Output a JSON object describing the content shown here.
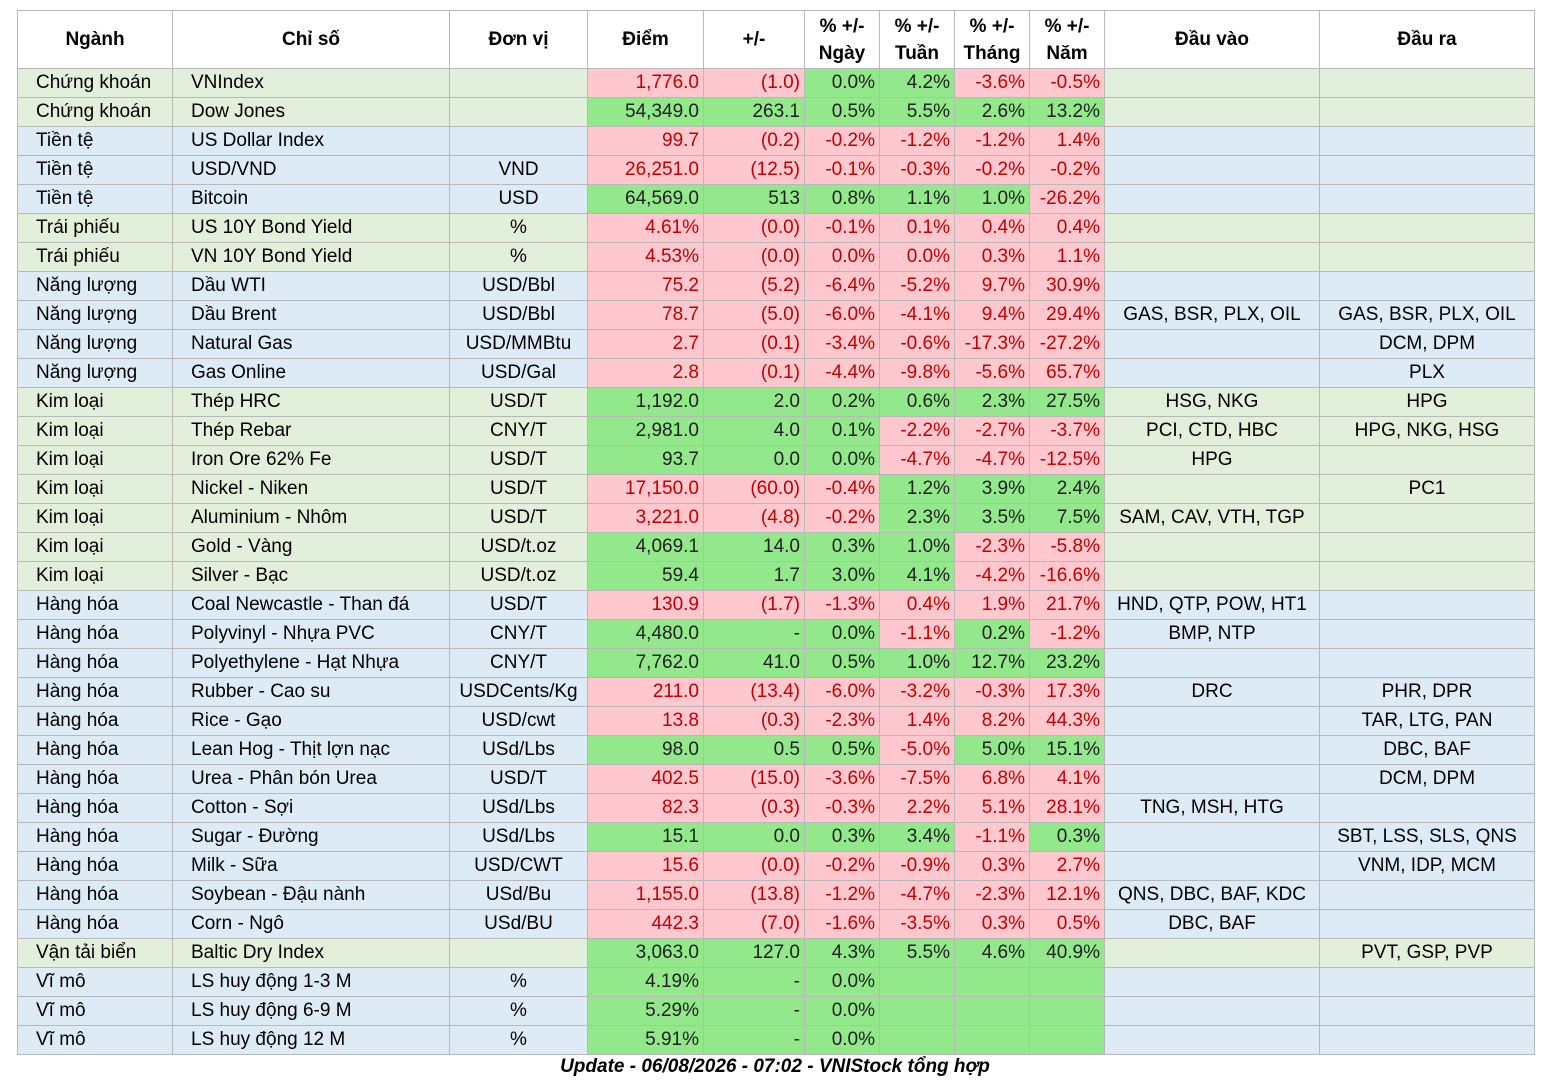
{
  "header": {
    "sector": "Ngành",
    "index": "Chỉ số",
    "unit": "Đơn vị",
    "point": "Điểm",
    "change": "+/-",
    "pct_day": "% +/- Ngày",
    "pct_week": "% +/- Tuần",
    "pct_month": "% +/- Tháng",
    "pct_year": "% +/- Năm",
    "inputs": "Đầu vào",
    "outputs": "Đầu ra"
  },
  "colors": {
    "green_fill": "#92e88a",
    "red_fill": "#ffc7ce",
    "red_text": "#c00000",
    "row_green": "#e2efda",
    "row_blue": "#ddebf7"
  },
  "rows": [
    {
      "sector": "Chứng khoán",
      "index": "VNIndex",
      "unit": "",
      "point": "1,776.0",
      "change": "(1.0)",
      "day": "0.0%",
      "week": "4.2%",
      "month": "-3.6%",
      "year": "-0.5%",
      "in": "",
      "out": "",
      "bg": "#e2efda",
      "c": [
        "r",
        "r",
        "g",
        "g",
        "r",
        "r"
      ]
    },
    {
      "sector": "Chứng khoán",
      "index": "Dow Jones",
      "unit": "",
      "point": "54,349.0",
      "change": "263.1",
      "day": "0.5%",
      "week": "5.5%",
      "month": "2.6%",
      "year": "13.2%",
      "in": "",
      "out": "",
      "bg": "#e2efda",
      "c": [
        "g",
        "g",
        "g",
        "g",
        "g",
        "g"
      ]
    },
    {
      "sector": "Tiền tệ",
      "index": "US Dollar Index",
      "unit": "",
      "point": "99.7",
      "change": "(0.2)",
      "day": "-0.2%",
      "week": "-1.2%",
      "month": "-1.2%",
      "year": "1.4%",
      "in": "",
      "out": "",
      "bg": "#ddebf7",
      "c": [
        "r",
        "r",
        "r",
        "r",
        "r",
        "r"
      ]
    },
    {
      "sector": "Tiền tệ",
      "index": "USD/VND",
      "unit": "VND",
      "point": "26,251.0",
      "change": "(12.5)",
      "day": "-0.1%",
      "week": "-0.3%",
      "month": "-0.2%",
      "year": "-0.2%",
      "in": "",
      "out": "",
      "bg": "#ddebf7",
      "c": [
        "r",
        "r",
        "r",
        "r",
        "r",
        "r"
      ]
    },
    {
      "sector": "Tiền tệ",
      "index": "Bitcoin",
      "unit": "USD",
      "point": "64,569.0",
      "change": "513",
      "day": "0.8%",
      "week": "1.1%",
      "month": "1.0%",
      "year": "-26.2%",
      "in": "",
      "out": "",
      "bg": "#ddebf7",
      "c": [
        "g",
        "g",
        "g",
        "g",
        "g",
        "r"
      ]
    },
    {
      "sector": "Trái phiếu",
      "index": "US 10Y Bond Yield",
      "unit": "%",
      "point": "4.61%",
      "change": "(0.0)",
      "day": "-0.1%",
      "week": "0.1%",
      "month": "0.4%",
      "year": "0.4%",
      "in": "",
      "out": "",
      "bg": "#e2efda",
      "c": [
        "r",
        "r",
        "r",
        "r",
        "r",
        "r"
      ]
    },
    {
      "sector": "Trái phiếu",
      "index": "VN 10Y Bond Yield",
      "unit": "%",
      "point": "4.53%",
      "change": "(0.0)",
      "day": "0.0%",
      "week": "0.0%",
      "month": "0.3%",
      "year": "1.1%",
      "in": "",
      "out": "",
      "bg": "#e2efda",
      "c": [
        "r",
        "r",
        "r",
        "r",
        "r",
        "r"
      ]
    },
    {
      "sector": "Năng lượng",
      "index": "Dầu WTI",
      "unit": "USD/Bbl",
      "point": "75.2",
      "change": "(5.2)",
      "day": "-6.4%",
      "week": "-5.2%",
      "month": "9.7%",
      "year": "30.9%",
      "in": "",
      "out": "",
      "bg": "#ddebf7",
      "c": [
        "r",
        "r",
        "r",
        "r",
        "r",
        "r"
      ]
    },
    {
      "sector": "Năng lượng",
      "index": "Dầu Brent",
      "unit": "USD/Bbl",
      "point": "78.7",
      "change": "(5.0)",
      "day": "-6.0%",
      "week": "-4.1%",
      "month": "9.4%",
      "year": "29.4%",
      "in": "GAS, BSR, PLX, OIL",
      "out": "GAS, BSR, PLX, OIL",
      "bg": "#ddebf7",
      "c": [
        "r",
        "r",
        "r",
        "r",
        "r",
        "r"
      ]
    },
    {
      "sector": "Năng lượng",
      "index": "Natural Gas",
      "unit": "USD/MMBtu",
      "point": "2.7",
      "change": "(0.1)",
      "day": "-3.4%",
      "week": "-0.6%",
      "month": "-17.3%",
      "year": "-27.2%",
      "in": "",
      "out": "DCM, DPM",
      "bg": "#ddebf7",
      "c": [
        "r",
        "r",
        "r",
        "r",
        "r",
        "r"
      ]
    },
    {
      "sector": "Năng lượng",
      "index": "Gas Online",
      "unit": "USD/Gal",
      "point": "2.8",
      "change": "(0.1)",
      "day": "-4.4%",
      "week": "-9.8%",
      "month": "-5.6%",
      "year": "65.7%",
      "in": "",
      "out": "PLX",
      "bg": "#ddebf7",
      "c": [
        "r",
        "r",
        "r",
        "r",
        "r",
        "r"
      ]
    },
    {
      "sector": "Kim loại",
      "index": "Thép HRC",
      "unit": "USD/T",
      "point": "1,192.0",
      "change": "2.0",
      "day": "0.2%",
      "week": "0.6%",
      "month": "2.3%",
      "year": "27.5%",
      "in": "HSG, NKG",
      "out": "HPG",
      "bg": "#e2efda",
      "c": [
        "g",
        "g",
        "g",
        "g",
        "g",
        "g"
      ]
    },
    {
      "sector": "Kim loại",
      "index": "Thép Rebar",
      "unit": "CNY/T",
      "point": "2,981.0",
      "change": "4.0",
      "day": "0.1%",
      "week": "-2.2%",
      "month": "-2.7%",
      "year": "-3.7%",
      "in": "PCI, CTD, HBC",
      "out": "HPG, NKG, HSG",
      "bg": "#e2efda",
      "c": [
        "g",
        "g",
        "g",
        "r",
        "r",
        "r"
      ]
    },
    {
      "sector": "Kim loại",
      "index": "Iron Ore 62% Fe",
      "unit": "USD/T",
      "point": "93.7",
      "change": "0.0",
      "day": "0.0%",
      "week": "-4.7%",
      "month": "-4.7%",
      "year": "-12.5%",
      "in": "HPG",
      "out": "",
      "bg": "#e2efda",
      "c": [
        "g",
        "g",
        "g",
        "r",
        "r",
        "r"
      ]
    },
    {
      "sector": "Kim loại",
      "index": "Nickel - Niken",
      "unit": "USD/T",
      "point": "17,150.0",
      "change": "(60.0)",
      "day": "-0.4%",
      "week": "1.2%",
      "month": "3.9%",
      "year": "2.4%",
      "in": "",
      "out": "PC1",
      "bg": "#e2efda",
      "c": [
        "r",
        "r",
        "r",
        "g",
        "g",
        "g"
      ]
    },
    {
      "sector": "Kim loại",
      "index": "Aluminium - Nhôm",
      "unit": "USD/T",
      "point": "3,221.0",
      "change": "(4.8)",
      "day": "-0.2%",
      "week": "2.3%",
      "month": "3.5%",
      "year": "7.5%",
      "in": "SAM, CAV, VTH, TGP",
      "out": "",
      "bg": "#e2efda",
      "c": [
        "r",
        "r",
        "r",
        "g",
        "g",
        "g"
      ]
    },
    {
      "sector": "Kim loại",
      "index": "Gold - Vàng",
      "unit": "USD/t.oz",
      "point": "4,069.1",
      "change": "14.0",
      "day": "0.3%",
      "week": "1.0%",
      "month": "-2.3%",
      "year": "-5.8%",
      "in": "",
      "out": "",
      "bg": "#e2efda",
      "c": [
        "g",
        "g",
        "g",
        "g",
        "r",
        "r"
      ]
    },
    {
      "sector": "Kim loại",
      "index": "Silver - Bạc",
      "unit": "USD/t.oz",
      "point": "59.4",
      "change": "1.7",
      "day": "3.0%",
      "week": "4.1%",
      "month": "-4.2%",
      "year": "-16.6%",
      "in": "",
      "out": "",
      "bg": "#e2efda",
      "c": [
        "g",
        "g",
        "g",
        "g",
        "r",
        "r"
      ]
    },
    {
      "sector": "Hàng hóa",
      "index": "Coal Newcastle - Than đá",
      "unit": "USD/T",
      "point": "130.9",
      "change": "(1.7)",
      "day": "-1.3%",
      "week": "0.4%",
      "month": "1.9%",
      "year": "21.7%",
      "in": "HND, QTP, POW, HT1",
      "out": "",
      "bg": "#ddebf7",
      "c": [
        "r",
        "r",
        "r",
        "r",
        "r",
        "r"
      ]
    },
    {
      "sector": "Hàng hóa",
      "index": "Polyvinyl - Nhựa PVC",
      "unit": "CNY/T",
      "point": "4,480.0",
      "change": "-",
      "day": "0.0%",
      "week": "-1.1%",
      "month": "0.2%",
      "year": "-1.2%",
      "in": "BMP, NTP",
      "out": "",
      "bg": "#ddebf7",
      "c": [
        "g",
        "g",
        "g",
        "r",
        "g",
        "r"
      ]
    },
    {
      "sector": "Hàng hóa",
      "index": "Polyethylene - Hạt Nhựa",
      "unit": "CNY/T",
      "point": "7,762.0",
      "change": "41.0",
      "day": "0.5%",
      "week": "1.0%",
      "month": "12.7%",
      "year": "23.2%",
      "in": "",
      "out": "",
      "bg": "#ddebf7",
      "c": [
        "g",
        "g",
        "g",
        "g",
        "g",
        "g"
      ]
    },
    {
      "sector": "Hàng hóa",
      "index": "Rubber - Cao su",
      "unit": "USDCents/Kg",
      "point": "211.0",
      "change": "(13.4)",
      "day": "-6.0%",
      "week": "-3.2%",
      "month": "-0.3%",
      "year": "17.3%",
      "in": "DRC",
      "out": "PHR, DPR",
      "bg": "#ddebf7",
      "c": [
        "r",
        "r",
        "r",
        "r",
        "r",
        "r"
      ]
    },
    {
      "sector": "Hàng hóa",
      "index": "Rice - Gạo",
      "unit": "USD/cwt",
      "point": "13.8",
      "change": "(0.3)",
      "day": "-2.3%",
      "week": "1.4%",
      "month": "8.2%",
      "year": "44.3%",
      "in": "",
      "out": "TAR, LTG, PAN",
      "bg": "#ddebf7",
      "c": [
        "r",
        "r",
        "r",
        "r",
        "r",
        "r"
      ]
    },
    {
      "sector": "Hàng hóa",
      "index": "Lean Hog - Thịt lợn nạc",
      "unit": "USd/Lbs",
      "point": "98.0",
      "change": "0.5",
      "day": "0.5%",
      "week": "-5.0%",
      "month": "5.0%",
      "year": "15.1%",
      "in": "",
      "out": "DBC, BAF",
      "bg": "#ddebf7",
      "c": [
        "g",
        "g",
        "g",
        "r",
        "g",
        "g"
      ]
    },
    {
      "sector": "Hàng hóa",
      "index": "Urea - Phân bón Urea",
      "unit": "USD/T",
      "point": "402.5",
      "change": "(15.0)",
      "day": "-3.6%",
      "week": "-7.5%",
      "month": "6.8%",
      "year": "4.1%",
      "in": "",
      "out": "DCM, DPM",
      "bg": "#ddebf7",
      "c": [
        "r",
        "r",
        "r",
        "r",
        "r",
        "r"
      ]
    },
    {
      "sector": "Hàng hóa",
      "index": "Cotton - Sợi",
      "unit": "USd/Lbs",
      "point": "82.3",
      "change": "(0.3)",
      "day": "-0.3%",
      "week": "2.2%",
      "month": "5.1%",
      "year": "28.1%",
      "in": "TNG, MSH, HTG",
      "out": "",
      "bg": "#ddebf7",
      "c": [
        "r",
        "r",
        "r",
        "r",
        "r",
        "r"
      ]
    },
    {
      "sector": "Hàng hóa",
      "index": "Sugar - Đường",
      "unit": "USd/Lbs",
      "point": "15.1",
      "change": "0.0",
      "day": "0.3%",
      "week": "3.4%",
      "month": "-1.1%",
      "year": "0.3%",
      "in": "",
      "out": "SBT, LSS, SLS, QNS",
      "bg": "#ddebf7",
      "c": [
        "g",
        "g",
        "g",
        "g",
        "r",
        "g"
      ]
    },
    {
      "sector": "Hàng hóa",
      "index": "Milk - Sữa",
      "unit": "USD/CWT",
      "point": "15.6",
      "change": "(0.0)",
      "day": "-0.2%",
      "week": "-0.9%",
      "month": "0.3%",
      "year": "2.7%",
      "in": "",
      "out": "VNM, IDP, MCM",
      "bg": "#ddebf7",
      "c": [
        "r",
        "r",
        "r",
        "r",
        "r",
        "r"
      ]
    },
    {
      "sector": "Hàng hóa",
      "index": "Soybean - Đậu nành",
      "unit": "USd/Bu",
      "point": "1,155.0",
      "change": "(13.8)",
      "day": "-1.2%",
      "week": "-4.7%",
      "month": "-2.3%",
      "year": "12.1%",
      "in": "QNS, DBC, BAF, KDC",
      "out": "",
      "bg": "#ddebf7",
      "c": [
        "r",
        "r",
        "r",
        "r",
        "r",
        "r"
      ]
    },
    {
      "sector": "Hàng hóa",
      "index": "Corn - Ngô",
      "unit": "USd/BU",
      "point": "442.3",
      "change": "(7.0)",
      "day": "-1.6%",
      "week": "-3.5%",
      "month": "0.3%",
      "year": "0.5%",
      "in": "DBC, BAF",
      "out": "",
      "bg": "#ddebf7",
      "c": [
        "r",
        "r",
        "r",
        "r",
        "r",
        "r"
      ]
    },
    {
      "sector": "Vận tải biển",
      "index": "Baltic Dry Index",
      "unit": "",
      "point": "3,063.0",
      "change": "127.0",
      "day": "4.3%",
      "week": "5.5%",
      "month": "4.6%",
      "year": "40.9%",
      "in": "",
      "out": "PVT, GSP, PVP",
      "bg": "#e2efda",
      "c": [
        "g",
        "g",
        "g",
        "g",
        "g",
        "g"
      ]
    },
    {
      "sector": "Vĩ mô",
      "index": "LS huy động 1-3 M",
      "unit": "%",
      "point": "4.19%",
      "change": "-",
      "day": "0.0%",
      "week": "",
      "month": "",
      "year": "",
      "in": "",
      "out": "",
      "bg": "#ddebf7",
      "c": [
        "g",
        "g",
        "g",
        "g",
        "g",
        "g"
      ]
    },
    {
      "sector": "Vĩ mô",
      "index": "LS huy động 6-9 M",
      "unit": "%",
      "point": "5.29%",
      "change": "-",
      "day": "0.0%",
      "week": "",
      "month": "",
      "year": "",
      "in": "",
      "out": "",
      "bg": "#ddebf7",
      "c": [
        "g",
        "g",
        "g",
        "g",
        "g",
        "g"
      ]
    },
    {
      "sector": "Vĩ mô",
      "index": "LS huy động 12 M",
      "unit": "%",
      "point": "5.91%",
      "change": "-",
      "day": "0.0%",
      "week": "",
      "month": "",
      "year": "",
      "in": "",
      "out": "",
      "bg": "#ddebf7",
      "c": [
        "g",
        "g",
        "g",
        "g",
        "g",
        "g"
      ]
    }
  ],
  "footer": "Update - 06/08/2026 - 07:02 - VNIStock tổng hợp"
}
